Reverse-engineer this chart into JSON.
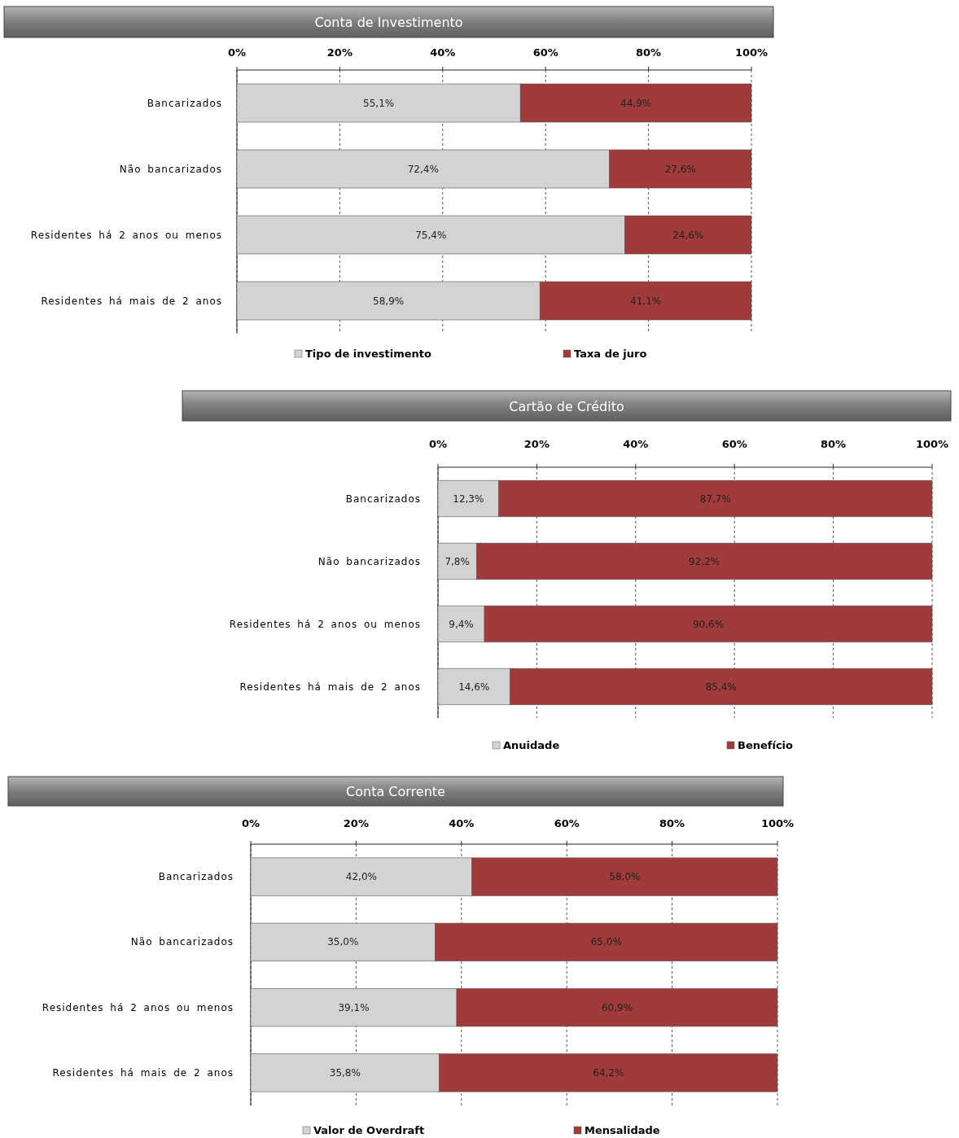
{
  "chart_data": [
    {
      "type": "bar",
      "orientation": "horizontal",
      "stacked": true,
      "title": "Conta de Investimento",
      "categories": [
        "Bancarizados",
        "Não bancarizados",
        "Residentes há 2 anos ou menos",
        "Residentes há mais de 2 anos"
      ],
      "series": [
        {
          "name": "Tipo de investimento",
          "color": "#d3d3d3",
          "values": [
            55.1,
            72.4,
            75.4,
            58.9
          ],
          "value_labels": [
            "55,1%",
            "72,4%",
            "75,4%",
            "58,9%"
          ]
        },
        {
          "name": "Taxa de juro",
          "color": "#a03b3b",
          "values": [
            44.9,
            27.6,
            24.6,
            41.1
          ],
          "value_labels": [
            "44,9%",
            "27,6%",
            "24,6%",
            "41,1%"
          ]
        }
      ],
      "xlim": [
        0,
        100
      ],
      "xticks": [
        {
          "value": 0,
          "label": "0%"
        },
        {
          "value": 20,
          "label": "20%"
        },
        {
          "value": 40,
          "label": "40%"
        },
        {
          "value": 60,
          "label": "60%"
        },
        {
          "value": 80,
          "label": "80%"
        },
        {
          "value": 100,
          "label": "100%"
        }
      ],
      "grid": "x",
      "legend": "bottom"
    },
    {
      "type": "bar",
      "orientation": "horizontal",
      "stacked": true,
      "title": "Cartão de Crédito",
      "categories": [
        "Bancarizados",
        "Não bancarizados",
        "Residentes há 2 anos ou menos",
        "Residentes há mais de 2 anos"
      ],
      "series": [
        {
          "name": "Anuidade",
          "color": "#d3d3d3",
          "values": [
            12.3,
            7.8,
            9.4,
            14.6
          ],
          "value_labels": [
            "12,3%",
            "7,8%",
            "9,4%",
            "14,6%"
          ]
        },
        {
          "name": "Benefício",
          "color": "#a03b3b",
          "values": [
            87.7,
            92.2,
            90.6,
            85.4
          ],
          "value_labels": [
            "87,7%",
            "92,2%",
            "90,6%",
            "85,4%"
          ]
        }
      ],
      "xlim": [
        0,
        100
      ],
      "xticks": [
        {
          "value": 0,
          "label": "0%"
        },
        {
          "value": 20,
          "label": "20%"
        },
        {
          "value": 40,
          "label": "40%"
        },
        {
          "value": 60,
          "label": "60%"
        },
        {
          "value": 80,
          "label": "80%"
        },
        {
          "value": 100,
          "label": "100%"
        }
      ],
      "grid": "x",
      "legend": "bottom"
    },
    {
      "type": "bar",
      "orientation": "horizontal",
      "stacked": true,
      "title": "Conta Corrente",
      "categories": [
        "Bancarizados",
        "Não bancarizados",
        "Residentes há 2 anos ou menos",
        "Residentes há mais de 2 anos"
      ],
      "series": [
        {
          "name": "Valor de Overdraft",
          "color": "#d3d3d3",
          "values": [
            42.0,
            35.0,
            39.1,
            35.8
          ],
          "value_labels": [
            "42,0%",
            "35,0%",
            "39,1%",
            "35,8%"
          ]
        },
        {
          "name": "Mensalidade",
          "color": "#a03b3b",
          "values": [
            58.0,
            65.0,
            60.9,
            64.2
          ],
          "value_labels": [
            "58,0%",
            "65,0%",
            "60,9%",
            "64,2%"
          ]
        }
      ],
      "xlim": [
        0,
        100
      ],
      "xticks": [
        {
          "value": 0,
          "label": "0%"
        },
        {
          "value": 20,
          "label": "20%"
        },
        {
          "value": 40,
          "label": "40%"
        },
        {
          "value": 60,
          "label": "60%"
        },
        {
          "value": 80,
          "label": "80%"
        },
        {
          "value": 100,
          "label": "100%"
        }
      ],
      "grid": "x",
      "legend": "bottom"
    }
  ]
}
